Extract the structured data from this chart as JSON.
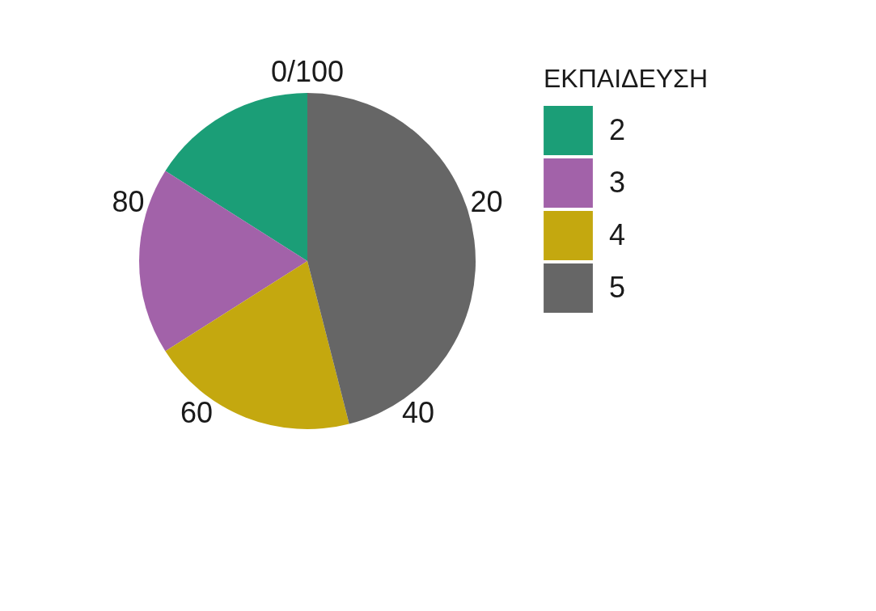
{
  "chart_data": {
    "type": "pie",
    "legend_title": "ΕΚΠΑΙΔΕΥΣΗ",
    "categories": [
      "2",
      "3",
      "4",
      "5"
    ],
    "values": [
      16,
      18,
      20,
      46
    ],
    "colors": [
      "#1b9e77",
      "#a262a9",
      "#c4a80f",
      "#666666"
    ],
    "annotations": [
      "0/100",
      "20",
      "40",
      "60",
      "80"
    ],
    "legend": "right"
  }
}
